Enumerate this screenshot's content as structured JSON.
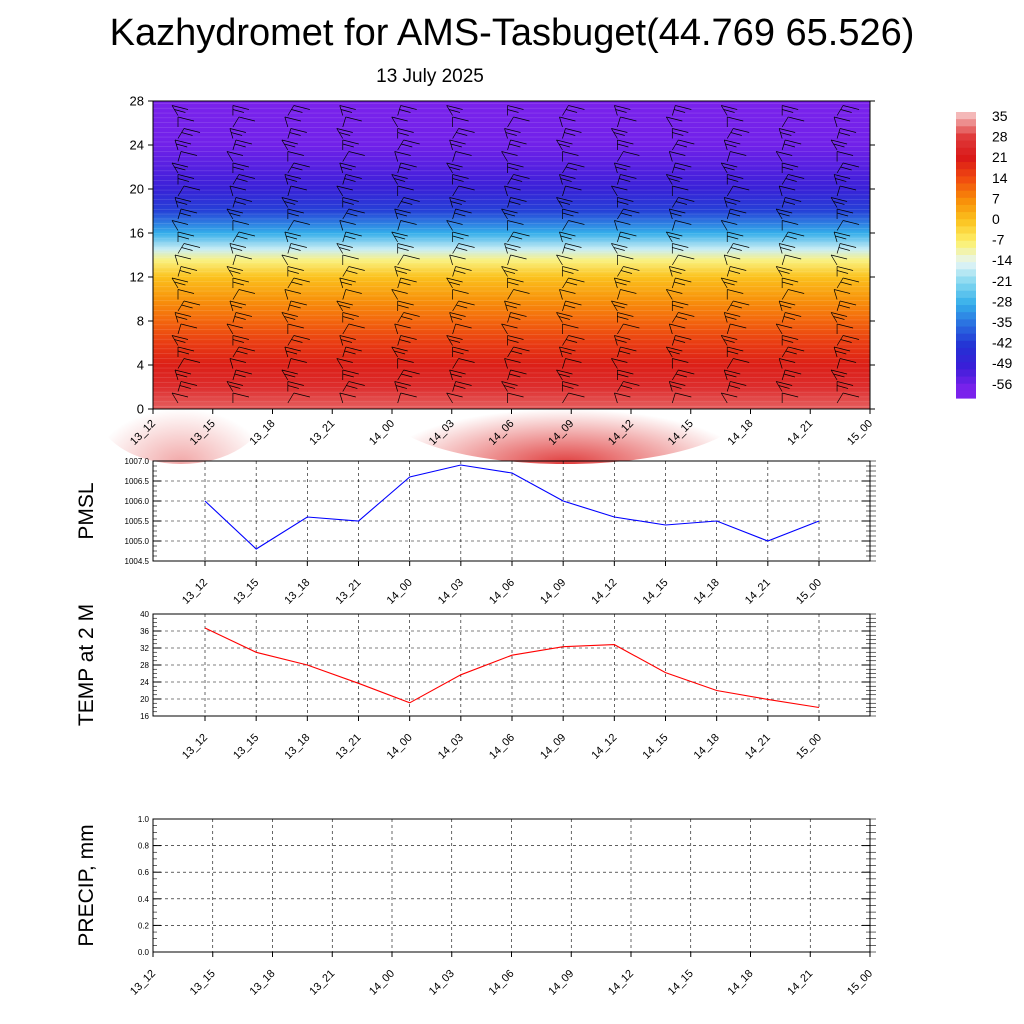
{
  "title": "Kazhydromet for AMS-Tasbuget(44.769 65.526)",
  "subtitle": "13 July 2025",
  "chart_data": [
    {
      "type": "heatmap",
      "name": "vertical-temperature-section",
      "categories": [
        "13_12",
        "13_15",
        "13_18",
        "13_21",
        "14_00",
        "14_03",
        "14_06",
        "14_09",
        "14_12",
        "14_15",
        "14_18",
        "14_21",
        "15_00"
      ],
      "y_ticks": [
        0,
        4,
        8,
        12,
        16,
        20,
        24,
        28
      ],
      "ylim": [
        0,
        28
      ],
      "color_scale": {
        "labels": [
          "35",
          "28",
          "21",
          "14",
          "7",
          "0",
          "-7",
          "-14",
          "-21",
          "-28",
          "-35",
          "-42",
          "-49",
          "-56"
        ],
        "stops": [
          {
            "value": 35,
            "color": "#f4b8b8"
          },
          {
            "value": 28,
            "color": "#e03c3c"
          },
          {
            "value": 21,
            "color": "#d91818"
          },
          {
            "value": 14,
            "color": "#f04a10"
          },
          {
            "value": 7,
            "color": "#f88c08"
          },
          {
            "value": 0,
            "color": "#fbc21e"
          },
          {
            "value": -7,
            "color": "#fdf06a"
          },
          {
            "value": -14,
            "color": "#e6f6f6"
          },
          {
            "value": -21,
            "color": "#82d7f0"
          },
          {
            "value": -28,
            "color": "#34aeea"
          },
          {
            "value": -35,
            "color": "#2a6ce0"
          },
          {
            "value": -42,
            "color": "#2330d4"
          },
          {
            "value": -49,
            "color": "#3b1ed8"
          },
          {
            "value": -56,
            "color": "#7a22ec"
          }
        ]
      },
      "temperature_by_height": [
        {
          "height": 0,
          "value": 30
        },
        {
          "height": 2,
          "value": 25
        },
        {
          "height": 4,
          "value": 20
        },
        {
          "height": 6,
          "value": 16
        },
        {
          "height": 8,
          "value": 11
        },
        {
          "height": 10,
          "value": 6
        },
        {
          "height": 12,
          "value": 0
        },
        {
          "height": 13.5,
          "value": -8
        },
        {
          "height": 14.5,
          "value": -16
        },
        {
          "height": 16,
          "value": -28
        },
        {
          "height": 18,
          "value": -40
        },
        {
          "height": 20,
          "value": -48
        },
        {
          "height": 22,
          "value": -52
        },
        {
          "height": 24,
          "value": -55
        },
        {
          "height": 28,
          "value": -58
        }
      ],
      "surface_warm_cores": [
        {
          "time": "13_12",
          "value": 34
        },
        {
          "time": "14_09",
          "value": 28
        }
      ]
    },
    {
      "type": "line",
      "ylabel": "PMSL",
      "categories": [
        "13_12",
        "13_15",
        "13_18",
        "13_21",
        "14_00",
        "14_03",
        "14_06",
        "14_09",
        "14_12",
        "14_15",
        "14_18",
        "14_21",
        "15_00"
      ],
      "y_ticks": [
        "1004.5",
        "1005.0",
        "1005.5",
        "1006.0",
        "1006.5",
        "1007.0"
      ],
      "ylim": [
        1004.5,
        1007.0
      ],
      "series": [
        {
          "color": "#0000ff",
          "values": [
            1006.0,
            1004.8,
            1005.6,
            1005.5,
            1006.6,
            1006.9,
            1006.7,
            1006.0,
            1005.6,
            1005.4,
            1005.5,
            1005.0,
            1005.5
          ]
        }
      ],
      "grid": true
    },
    {
      "type": "line",
      "ylabel": "TEMP at 2 M",
      "categories": [
        "13_12",
        "13_15",
        "13_18",
        "13_21",
        "14_00",
        "14_03",
        "14_06",
        "14_09",
        "14_12",
        "14_15",
        "14_18",
        "14_21",
        "15_00"
      ],
      "y_ticks": [
        "16",
        "20",
        "24",
        "28",
        "32",
        "36",
        "40"
      ],
      "ylim": [
        16,
        40
      ],
      "series": [
        {
          "color": "#ff0000",
          "values": [
            36.7,
            31.0,
            28.0,
            23.7,
            19.1,
            25.7,
            30.3,
            32.3,
            32.8,
            26.2,
            22.0,
            19.9,
            18.0
          ]
        }
      ],
      "grid": true
    },
    {
      "type": "line",
      "ylabel": "PRECIP, mm",
      "categories": [
        "13_12",
        "13_15",
        "13_18",
        "13_21",
        "14_00",
        "14_03",
        "14_06",
        "14_09",
        "14_12",
        "14_15",
        "14_18",
        "14_21",
        "15_00"
      ],
      "y_ticks": [
        "0.0",
        "0.2",
        "0.4",
        "0.6",
        "0.8",
        "1.0"
      ],
      "ylim": [
        0,
        1
      ],
      "series": [
        {
          "color": "#006400",
          "values": [
            0,
            0,
            0,
            0,
            0,
            0,
            0,
            0,
            0,
            0,
            0,
            0,
            0
          ]
        }
      ],
      "grid": true
    }
  ]
}
